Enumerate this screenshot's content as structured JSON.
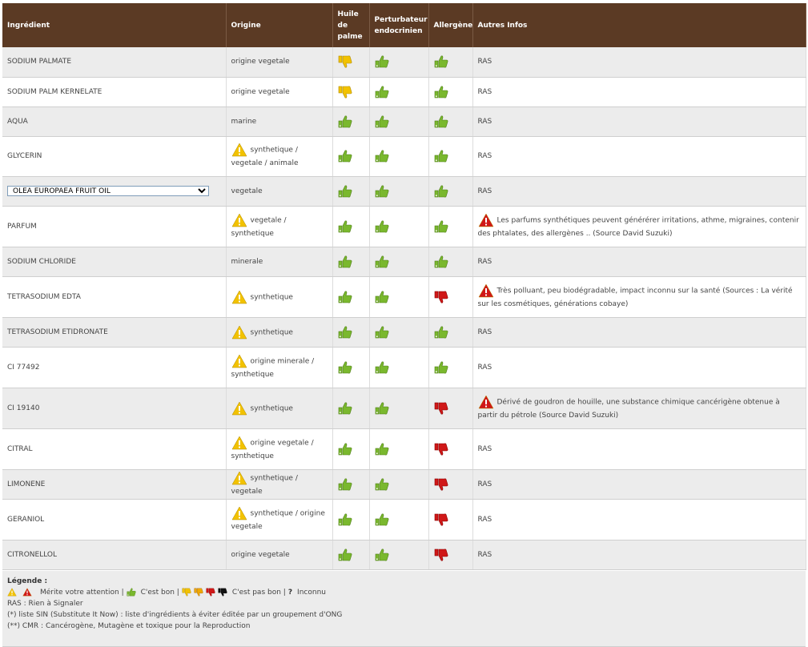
{
  "headers": {
    "ingredient": "Ingrédient",
    "origine": "Origine",
    "huile": "Huile de palme",
    "perturbateur": "Perturbateur endocrinien",
    "allergene": "Allergène",
    "autres": "Autres Infos"
  },
  "colors": {
    "header_bg": "#5b3a24",
    "good": "#7ab82e",
    "orange_bad": "#f0a800",
    "red_bad": "#d01818",
    "warn_yellow": "#f2c200",
    "warn_red": "#d01818"
  },
  "rows": [
    {
      "name": "SODIUM PALMATE",
      "origin": "origine vegetale",
      "origin_warn": false,
      "palm": "bad-yellow",
      "perturb": "good",
      "allergen": "good",
      "info": "RAS",
      "info_warn": false
    },
    {
      "name": "SODIUM PALM KERNELATE",
      "origin": "origine vegetale",
      "origin_warn": false,
      "palm": "bad-yellow",
      "perturb": "good",
      "allergen": "good",
      "info": "RAS",
      "info_warn": false
    },
    {
      "name": "AQUA",
      "origin": "marine",
      "origin_warn": false,
      "palm": "good",
      "perturb": "good",
      "allergen": "good",
      "info": "RAS",
      "info_warn": false
    },
    {
      "name": "GLYCERIN",
      "origin": "synthetique / vegetale / animale",
      "origin_warn": true,
      "palm": "good",
      "perturb": "good",
      "allergen": "good",
      "info": "RAS",
      "info_warn": false
    },
    {
      "name": "OLEA EUROPAEA FRUIT OIL",
      "is_select": true,
      "origin": "vegetale",
      "origin_warn": false,
      "palm": "good",
      "perturb": "good",
      "allergen": "good",
      "info": "RAS",
      "info_warn": false
    },
    {
      "name": "PARFUM",
      "origin": "vegetale / synthetique",
      "origin_warn": true,
      "palm": "good",
      "perturb": "good",
      "allergen": "good",
      "info": "Les parfums synthétiques peuvent générérer irritations, athme, migraines, contenir des phtalates, des allergènes .. (Source David Suzuki)",
      "info_warn": true
    },
    {
      "name": "SODIUM CHLORIDE",
      "origin": "minerale",
      "origin_warn": false,
      "palm": "good",
      "perturb": "good",
      "allergen": "good",
      "info": "RAS",
      "info_warn": false
    },
    {
      "name": "TETRASODIUM EDTA",
      "origin": "synthetique",
      "origin_warn": true,
      "palm": "good",
      "perturb": "good",
      "allergen": "bad-red",
      "info": "Très polluant, peu biodégradable, impact inconnu sur la santé (Sources : La vérité sur les cosmétiques, générations cobaye)",
      "info_warn": true
    },
    {
      "name": "TETRASODIUM ETIDRONATE",
      "origin": "synthetique",
      "origin_warn": true,
      "palm": "good",
      "perturb": "good",
      "allergen": "good",
      "info": "RAS",
      "info_warn": false
    },
    {
      "name": "CI 77492",
      "origin": "origine minerale / synthetique",
      "origin_warn": true,
      "palm": "good",
      "perturb": "good",
      "allergen": "good",
      "info": "RAS",
      "info_warn": false
    },
    {
      "name": "CI 19140",
      "origin": "synthetique",
      "origin_warn": true,
      "palm": "good",
      "perturb": "good",
      "allergen": "bad-red",
      "info": "Dérivé de goudron de houille, une substance chimique cancérigène obtenue à partir du pétrole (Source David Suzuki)",
      "info_warn": true
    },
    {
      "name": "CITRAL",
      "origin": "origine vegetale / synthetique",
      "origin_warn": true,
      "palm": "good",
      "perturb": "good",
      "allergen": "bad-red",
      "info": "RAS",
      "info_warn": false
    },
    {
      "name": "LIMONENE",
      "origin": "synthetique / vegetale",
      "origin_warn": true,
      "palm": "good",
      "perturb": "good",
      "allergen": "bad-red",
      "info": "RAS",
      "info_warn": false
    },
    {
      "name": "GERANIOL",
      "origin": "synthetique / origine vegetale",
      "origin_warn": true,
      "palm": "good",
      "perturb": "good",
      "allergen": "bad-red",
      "info": "RAS",
      "info_warn": false
    },
    {
      "name": "CITRONELLOL",
      "origin": "origine vegetale",
      "origin_warn": false,
      "palm": "good",
      "perturb": "good",
      "allergen": "bad-red",
      "info": "RAS",
      "info_warn": false
    }
  ],
  "legend": {
    "title": "Légende :",
    "attention": "Mérite votre attention |",
    "good": "C'est bon |",
    "bad": "C'est pas bon |",
    "unknown_mark": "?",
    "unknown": "Inconnu",
    "ras": "RAS : Rien à Signaler",
    "sin": "(*) liste SIN (Substitute It Now) : liste d'ingrédients à éviter éditée par un groupement d'ONG",
    "cmr": "(**) CMR : Cancérogène, Mutagène et toxique pour la Reproduction"
  }
}
